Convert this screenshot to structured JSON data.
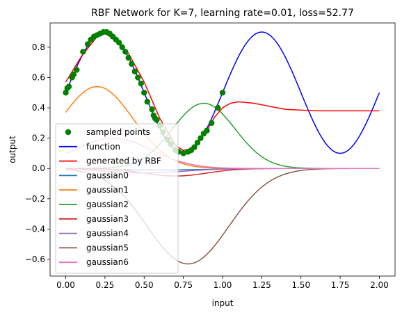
{
  "chart_data": {
    "type": "line",
    "title": "RBF Network for K=7, learning rate=0.01, loss=52.77",
    "xlabel": "input",
    "ylabel": "output",
    "xlim": [
      -0.1,
      2.1
    ],
    "ylim": [
      -0.71,
      0.96
    ],
    "xticks": [
      0.0,
      0.25,
      0.5,
      0.75,
      1.0,
      1.25,
      1.5,
      1.75,
      2.0
    ],
    "xtick_labels": [
      "0.00",
      "0.25",
      "0.50",
      "0.75",
      "1.00",
      "1.25",
      "1.50",
      "1.75",
      "2.00"
    ],
    "yticks": [
      -0.6,
      -0.4,
      -0.2,
      0.0,
      0.2,
      0.4,
      0.6,
      0.8
    ],
    "ytick_labels": [
      "−0.6",
      "−0.4",
      "−0.2",
      "0.0",
      "0.2",
      "0.4",
      "0.6",
      "0.8"
    ],
    "legend_position": "lower-left",
    "function": {
      "name": "function",
      "color": "#0000ff",
      "formula": "0.5 + 0.4*sin(2*pi*x)",
      "x_range": [
        0,
        2
      ]
    },
    "generated": {
      "name": "generated by RBF",
      "color": "#ff0000",
      "x": [
        0.0,
        0.1,
        0.2,
        0.25,
        0.3,
        0.4,
        0.5,
        0.6,
        0.7,
        0.75,
        0.8,
        0.85,
        0.9,
        0.95,
        1.0,
        1.05,
        1.1,
        1.15,
        1.2,
        1.3,
        1.4,
        1.5,
        1.6,
        1.8,
        2.0
      ],
      "y": [
        0.57,
        0.74,
        0.87,
        0.89,
        0.86,
        0.76,
        0.57,
        0.33,
        0.15,
        0.12,
        0.13,
        0.18,
        0.25,
        0.34,
        0.4,
        0.43,
        0.44,
        0.435,
        0.43,
        0.41,
        0.39,
        0.385,
        0.38,
        0.38,
        0.38
      ]
    },
    "sampled_points": {
      "name": "sampled points",
      "color": "#008000",
      "x": [
        0.0,
        0.01,
        0.02,
        0.04,
        0.05,
        0.07,
        0.11,
        0.14,
        0.16,
        0.18,
        0.2,
        0.22,
        0.24,
        0.26,
        0.28,
        0.3,
        0.32,
        0.34,
        0.36,
        0.38,
        0.4,
        0.42,
        0.44,
        0.46,
        0.48,
        0.5,
        0.52,
        0.55,
        0.56,
        0.57,
        0.58,
        0.6,
        0.62,
        0.65,
        0.67,
        0.7,
        0.72,
        0.75,
        0.78,
        0.8,
        0.82,
        0.84,
        0.86,
        0.88,
        0.9,
        0.93,
        0.97,
        1.0
      ],
      "y": [
        0.5,
        0.53,
        0.54,
        0.6,
        0.62,
        0.65,
        0.77,
        0.82,
        0.85,
        0.87,
        0.88,
        0.89,
        0.9,
        0.9,
        0.89,
        0.87,
        0.85,
        0.83,
        0.8,
        0.77,
        0.73,
        0.69,
        0.64,
        0.6,
        0.56,
        0.5,
        0.44,
        0.39,
        0.35,
        0.33,
        0.32,
        0.28,
        0.24,
        0.19,
        0.16,
        0.12,
        0.11,
        0.1,
        0.11,
        0.12,
        0.14,
        0.17,
        0.2,
        0.23,
        0.25,
        0.3,
        0.4,
        0.5
      ]
    },
    "gaussians": [
      {
        "name": "gaussian0",
        "color": "#1f77b4",
        "amplitude": -0.01,
        "center": 0.6,
        "sigma": 0.3
      },
      {
        "name": "gaussian1",
        "color": "#ff7f0e",
        "amplitude": 0.54,
        "center": 0.2,
        "sigma": 0.23
      },
      {
        "name": "gaussian2",
        "color": "#2ca02c",
        "amplitude": 0.43,
        "center": 0.88,
        "sigma": 0.2
      },
      {
        "name": "gaussian3",
        "color": "#d62728",
        "amplitude": -0.05,
        "center": 0.7,
        "sigma": 0.2
      },
      {
        "name": "gaussian4",
        "color": "#9467bd",
        "amplitude": -0.03,
        "center": 0.5,
        "sigma": 0.25
      },
      {
        "name": "gaussian5",
        "color": "#8c564b",
        "amplitude": -0.63,
        "center": 0.78,
        "sigma": 0.26
      },
      {
        "name": "gaussian6",
        "color": "#e377c2",
        "amplitude": 0.2,
        "center": 0.3,
        "sigma": 0.25
      }
    ],
    "legend_entries": [
      "sampled points",
      "function",
      "generated by RBF",
      "gaussian0",
      "gaussian1",
      "gaussian2",
      "gaussian3",
      "gaussian4",
      "gaussian5",
      "gaussian6"
    ]
  }
}
